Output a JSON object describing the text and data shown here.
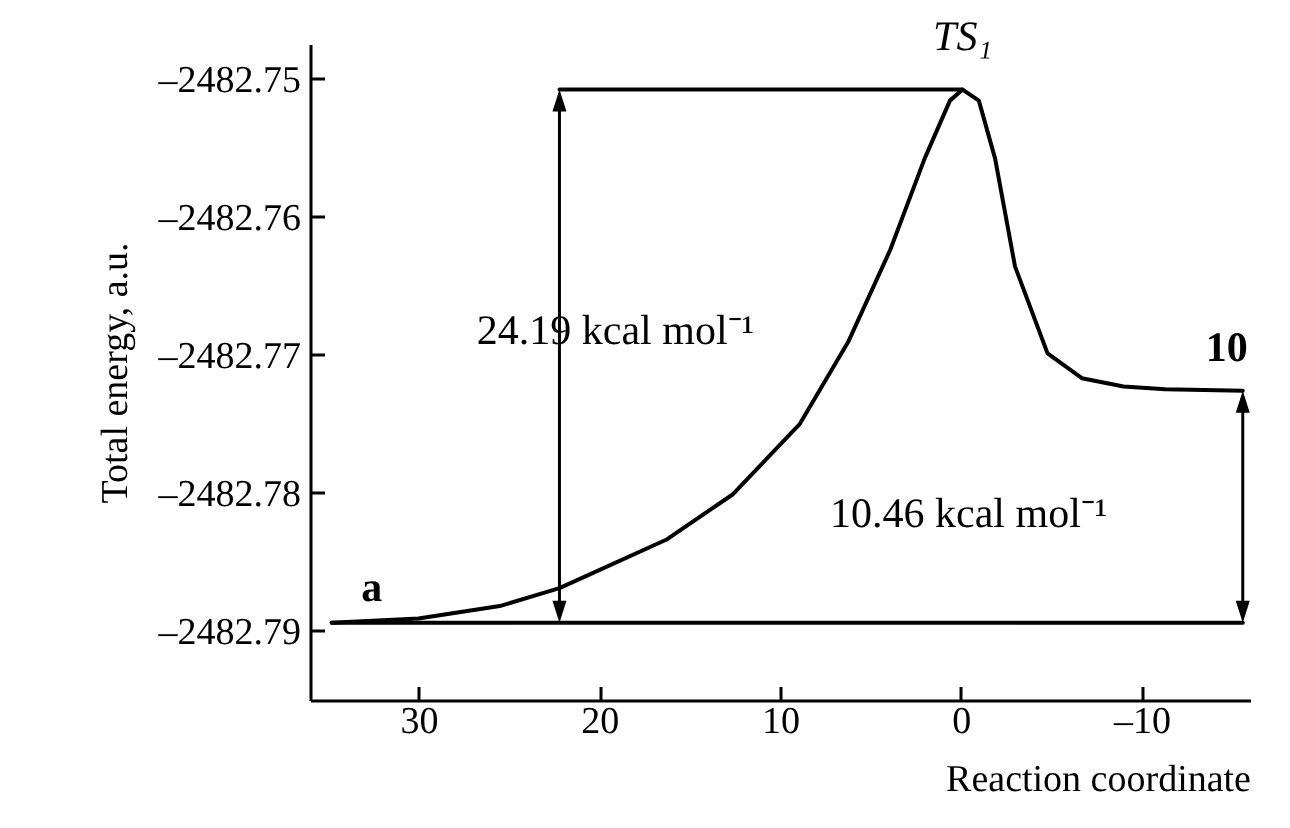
{
  "chart_data": {
    "type": "line",
    "xlabel": "Reaction coordinate",
    "ylabel": "Total energy, a.u.",
    "xlim": [
      36,
      -16
    ],
    "ylim": [
      -2482.795,
      -2482.7475
    ],
    "xticks": [
      30,
      20,
      10,
      0,
      {
        "value": -10,
        "label": "–10"
      }
    ],
    "yticks": [
      {
        "value": -2482.79,
        "label": "–2482.79"
      },
      {
        "value": -2482.78,
        "label": "–2482.78"
      },
      {
        "value": -2482.77,
        "label": "–2482.77"
      },
      {
        "value": -2482.76,
        "label": "–2482.76"
      },
      {
        "value": -2482.75,
        "label": "–2482.75"
      }
    ],
    "grid": false,
    "series": [
      {
        "color": "#000000",
        "x": [
          34.8,
          30,
          25.5,
          22.2,
          16.3,
          12.6,
          8.9,
          6.2,
          3.9,
          2.0,
          0.6,
          -0.1,
          -1.0,
          -1.9,
          -3.0,
          -4.8,
          -6.7,
          -9.0,
          -11.3,
          -15.6
        ],
        "values": [
          -2482.7894,
          -2482.7891,
          -2482.7882,
          -2482.7869,
          -2482.7834,
          -2482.7801,
          -2482.775,
          -2482.769,
          -2482.7624,
          -2482.7558,
          -2482.7516,
          -2482.7508,
          -2482.7516,
          -2482.7558,
          -2482.7636,
          -2482.7699,
          -2482.7717,
          -2482.7723,
          -2482.7725,
          -2482.7726
        ]
      },
      {
        "color": "#000000",
        "x": [
          34.8,
          -15.6
        ],
        "values": [
          -2482.7894,
          -2482.7894
        ]
      },
      {
        "color": "#000000",
        "x": [
          22.2,
          -0.1
        ],
        "values": [
          -2482.7508,
          -2482.7508
        ]
      }
    ],
    "annotations": [
      "a",
      "TS₁",
      "10",
      "24.19 kcal mol⁻¹",
      "10.46 kcal mol⁻¹"
    ]
  }
}
